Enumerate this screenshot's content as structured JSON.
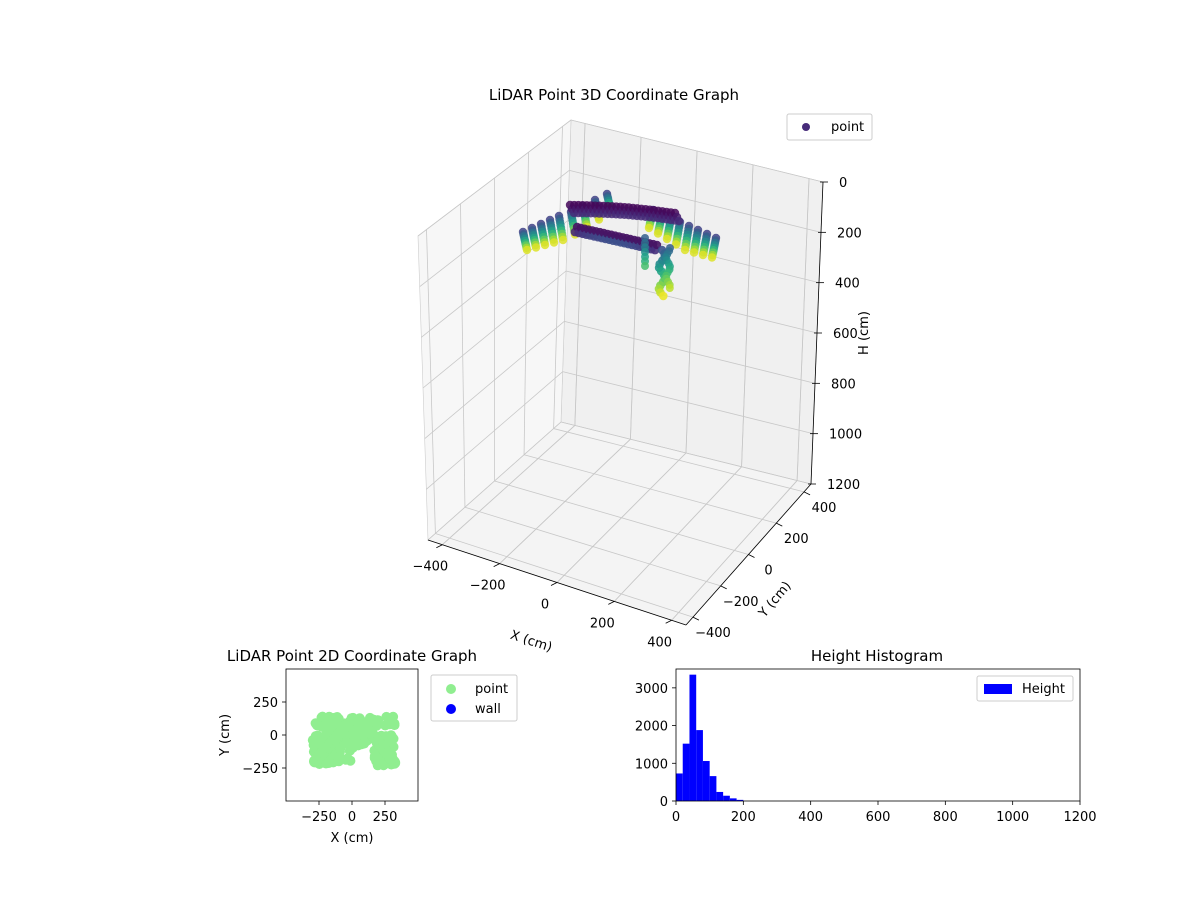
{
  "chart_data": [
    {
      "type": "scatter",
      "subtype": "3d",
      "title": "LiDAR Point 3D Coordinate Graph",
      "xlabel": "X (cm)",
      "ylabel": "Y (cm)",
      "zlabel": "H (cm)",
      "xlim": [
        -450,
        450
      ],
      "ylim": [
        -450,
        450
      ],
      "zlim": [
        1200,
        0
      ],
      "xticks": [
        "−400",
        "−200",
        "0",
        "200",
        "400"
      ],
      "yticks": [
        "−400",
        "−200",
        "0",
        "200",
        "400"
      ],
      "zticks": [
        "0",
        "200",
        "400",
        "600",
        "800",
        "1000",
        "1200"
      ],
      "colormap": "viridis",
      "grid": true,
      "legend": {
        "position": "top-right",
        "entries": [
          {
            "label": "point",
            "color": "#472c7a"
          }
        ]
      },
      "series": [
        {
          "name": "point",
          "color": "#472c7a"
        }
      ]
    },
    {
      "type": "scatter",
      "title": "LiDAR Point 2D Coordinate Graph",
      "xlabel": "X (cm)",
      "ylabel": "Y (cm)",
      "xlim": [
        -500,
        500
      ],
      "ylim": [
        -500,
        500
      ],
      "xticks": [
        "−250",
        "0",
        "250"
      ],
      "yticks": [
        "250",
        "0",
        "−250"
      ],
      "grid": false,
      "legend": {
        "position": "outside-right",
        "entries": [
          {
            "label": "point",
            "color": "#90ee90"
          },
          {
            "label": "wall",
            "color": "#0000ff"
          }
        ]
      },
      "series": [
        {
          "name": "point",
          "color": "#90ee90",
          "regions": [
            {
              "x": [
                -280,
                350
              ],
              "y": [
                60,
                140
              ]
            },
            {
              "x": [
                -300,
                20
              ],
              "y": [
                -220,
                20
              ]
            },
            {
              "x": [
                170,
                320
              ],
              "y": [
                -230,
                0
              ]
            },
            {
              "x": [
                -110,
                130
              ],
              "y": [
                -80,
                80
              ]
            }
          ]
        },
        {
          "name": "wall",
          "color": "#0000ff",
          "x": [],
          "y": []
        }
      ]
    },
    {
      "type": "bar",
      "subtype": "histogram",
      "title": "Height Histogram",
      "xlabel": "",
      "ylabel": "",
      "xlim": [
        0,
        1200
      ],
      "ylim": [
        0,
        3500
      ],
      "xticks": [
        "0",
        "200",
        "400",
        "600",
        "800",
        "1000",
        "1200"
      ],
      "yticks": [
        "0",
        "1000",
        "2000",
        "3000"
      ],
      "color": "#0000ff",
      "legend": {
        "position": "top-right",
        "entries": [
          {
            "label": "Height",
            "color": "#0000ff"
          }
        ]
      },
      "series": [
        {
          "name": "Height",
          "bins": [
            0,
            20,
            40,
            60,
            80,
            100,
            120,
            140,
            160,
            180,
            200
          ],
          "values": [
            730,
            1520,
            3350,
            1880,
            1060,
            660,
            240,
            140,
            70,
            30
          ]
        }
      ]
    }
  ]
}
